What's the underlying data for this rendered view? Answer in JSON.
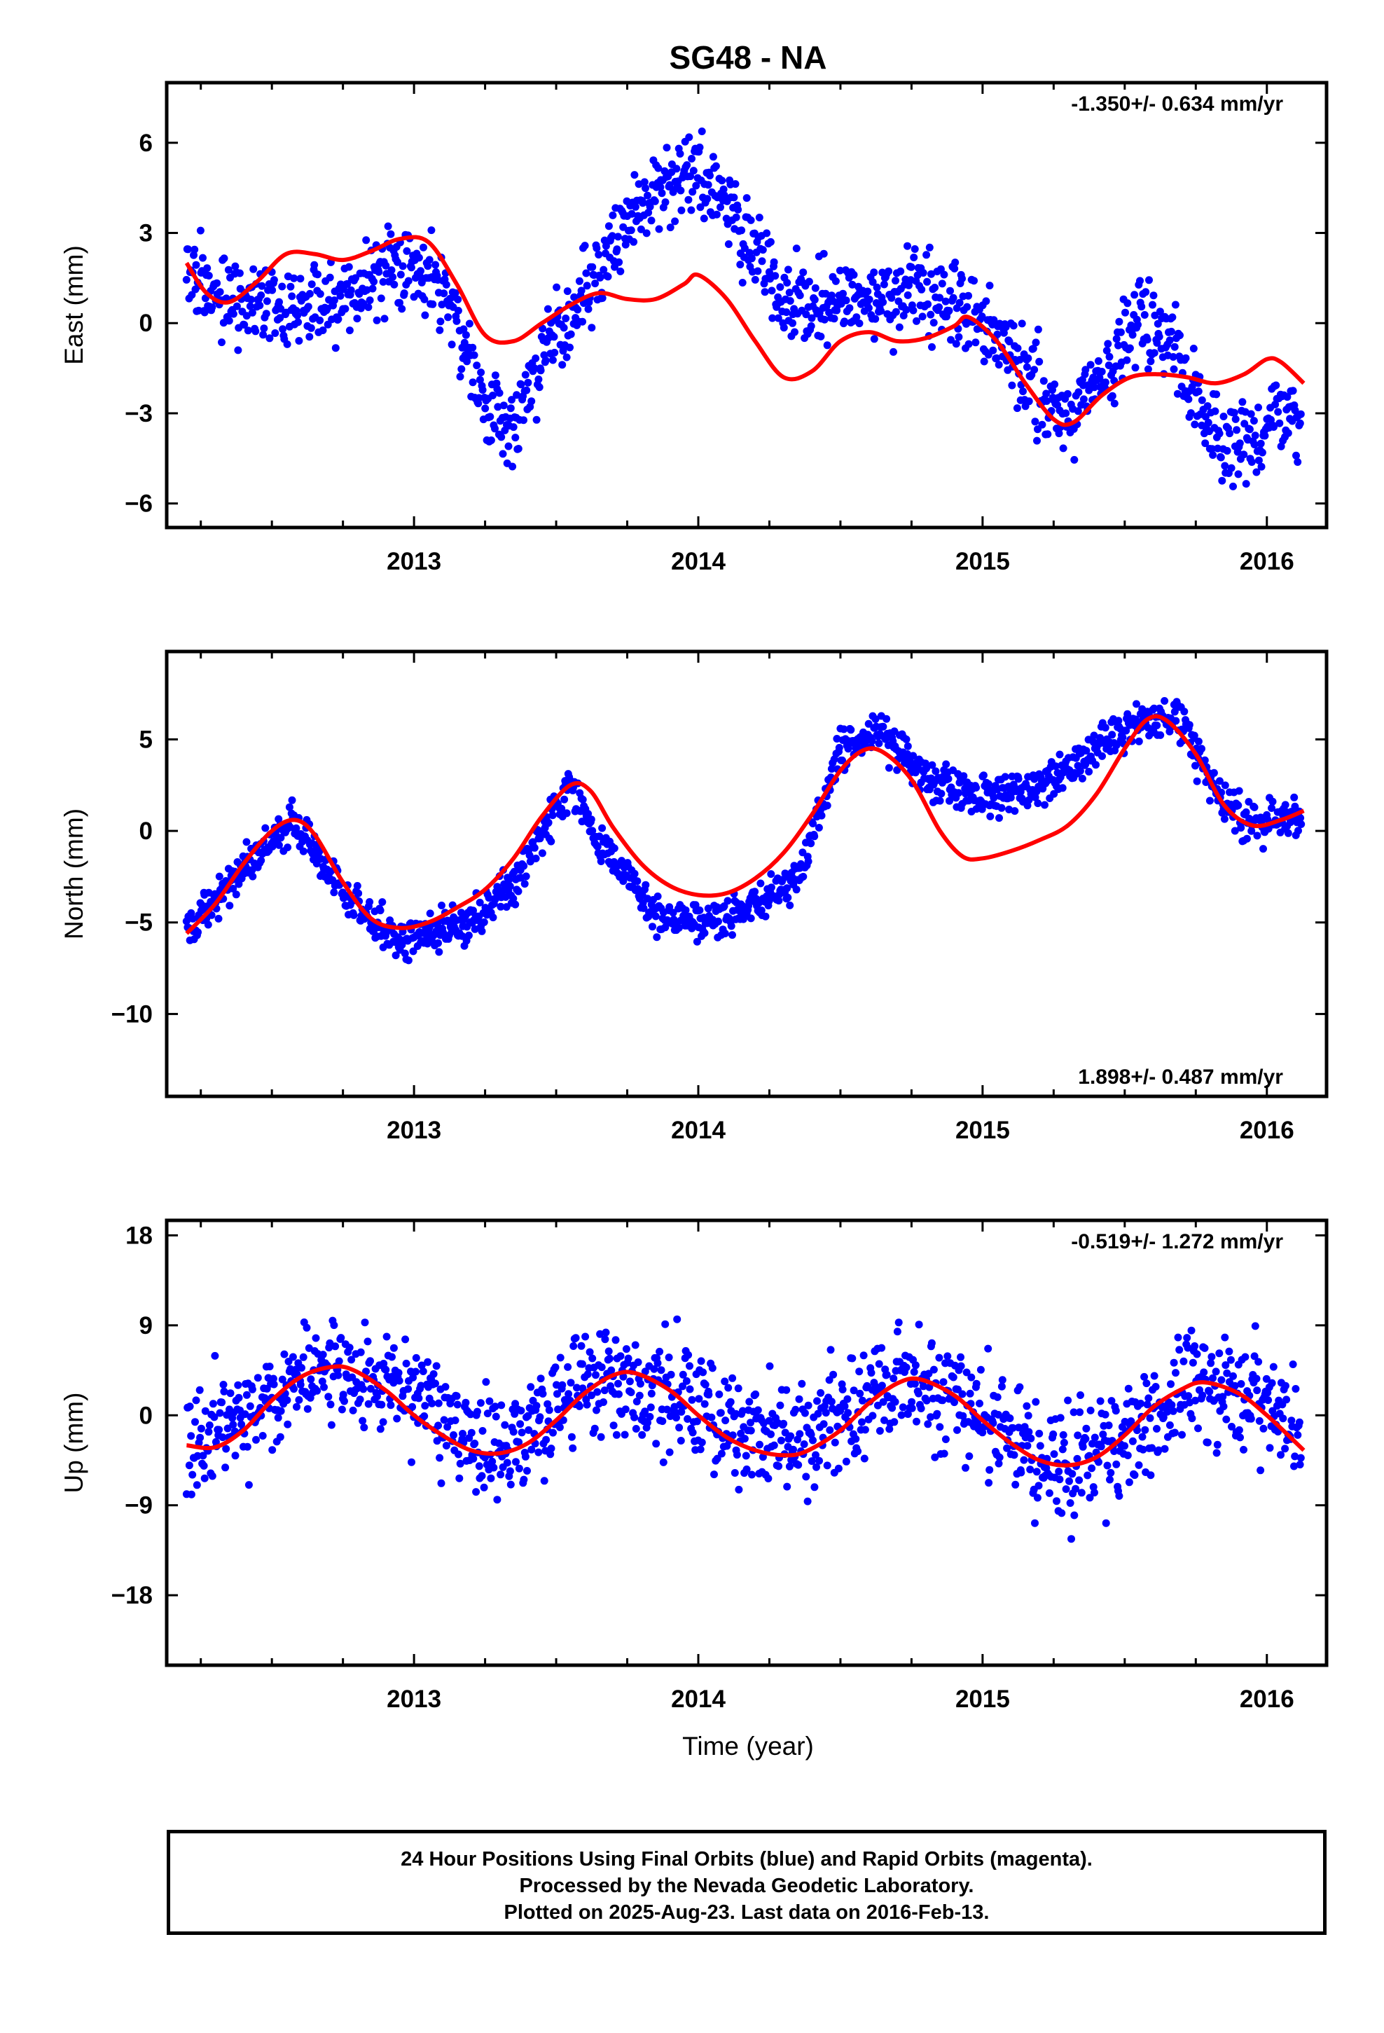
{
  "title": "SG48 - NA",
  "colors": {
    "points": "#0000ff",
    "fit": "#ff0000",
    "frame": "#000000"
  },
  "x_axis_label": "Time (year)",
  "footer": {
    "line1": "24 Hour Positions Using Final Orbits (blue) and Rapid Orbits (magenta).",
    "line2": "Processed by the Nevada Geodetic Laboratory.",
    "line3": "Plotted on 2025-Aug-23. Last data on 2016-Feb-13."
  },
  "chart_data": [
    {
      "type": "scatter",
      "component": "east",
      "ylabel": "East (mm)",
      "rate_text": "-1.350+/- 0.634 mm/yr",
      "rate_position": "top-right",
      "xlim": [
        2012.13,
        2016.21
      ],
      "ylim": [
        -6.8,
        8.0
      ],
      "x_ticks": [
        2013,
        2014,
        2015,
        2016
      ],
      "y_ticks": [
        -6,
        -3,
        0,
        3,
        6
      ],
      "y_tick_labels": [
        "−6",
        "−3",
        "0",
        "3",
        "6"
      ],
      "grid": false,
      "series_trend": [
        [
          2012.2,
          1.6
        ],
        [
          2012.4,
          0.5
        ],
        [
          2012.7,
          0.5
        ],
        [
          2012.95,
          2.0
        ],
        [
          2013.1,
          1.2
        ],
        [
          2013.25,
          -2.8
        ],
        [
          2013.35,
          -3.8
        ],
        [
          2013.45,
          -1.0
        ],
        [
          2013.6,
          1.2
        ],
        [
          2013.8,
          4.0
        ],
        [
          2013.95,
          4.8
        ],
        [
          2014.05,
          4.7
        ],
        [
          2014.15,
          3.0
        ],
        [
          2014.3,
          0.8
        ],
        [
          2014.5,
          0.5
        ],
        [
          2014.7,
          1.0
        ],
        [
          2014.9,
          0.8
        ],
        [
          2015.05,
          -0.3
        ],
        [
          2015.2,
          -2.3
        ],
        [
          2015.3,
          -3.3
        ],
        [
          2015.45,
          -1.5
        ],
        [
          2015.55,
          0.4
        ],
        [
          2015.65,
          -0.5
        ],
        [
          2015.75,
          -2.5
        ],
        [
          2015.85,
          -3.8
        ],
        [
          2015.95,
          -4.0
        ],
        [
          2016.05,
          -2.8
        ],
        [
          2016.13,
          -3.8
        ]
      ],
      "series_noise": 1.0,
      "fit_curve": {
        "x": [
          2012.2,
          2012.27,
          2012.35,
          2012.45,
          2012.55,
          2012.65,
          2012.75,
          2012.85,
          2012.95,
          2013.05,
          2013.15,
          2013.25,
          2013.35,
          2013.45,
          2013.55,
          2013.65,
          2013.75,
          2013.85,
          2013.95,
          2014.0,
          2014.1,
          2014.2,
          2014.3,
          2014.4,
          2014.5,
          2014.6,
          2014.7,
          2014.8,
          2014.9,
          2014.95,
          2015.05,
          2015.15,
          2015.25,
          2015.32,
          2015.42,
          2015.52,
          2015.62,
          2015.72,
          2015.82,
          2015.92,
          2016.0,
          2016.05,
          2016.13
        ],
        "y": [
          2.0,
          1.0,
          0.7,
          1.4,
          2.3,
          2.3,
          2.1,
          2.4,
          2.8,
          2.7,
          1.3,
          -0.4,
          -0.6,
          0.0,
          0.6,
          1.0,
          0.8,
          0.8,
          1.3,
          1.6,
          0.8,
          -0.6,
          -1.8,
          -1.6,
          -0.6,
          -0.3,
          -0.6,
          -0.5,
          -0.1,
          0.2,
          -0.6,
          -2.0,
          -3.2,
          -3.3,
          -2.4,
          -1.8,
          -1.7,
          -1.8,
          -2.0,
          -1.7,
          -1.2,
          -1.3,
          -2.0
        ]
      }
    },
    {
      "type": "scatter",
      "component": "north",
      "ylabel": "North (mm)",
      "rate_text": "1.898+/- 0.487 mm/yr",
      "rate_position": "bottom-right",
      "xlim": [
        2012.13,
        2016.21
      ],
      "ylim": [
        -14.5,
        9.8
      ],
      "x_ticks": [
        2013,
        2014,
        2015,
        2016
      ],
      "y_ticks": [
        -10,
        -5,
        0,
        5
      ],
      "y_tick_labels": [
        "−10",
        "−5",
        "0",
        "5"
      ],
      "grid": false,
      "series_trend": [
        [
          2012.2,
          -5.5
        ],
        [
          2012.4,
          -2.0
        ],
        [
          2012.58,
          0.6
        ],
        [
          2012.75,
          -3.5
        ],
        [
          2012.95,
          -6.0
        ],
        [
          2013.15,
          -5.3
        ],
        [
          2013.35,
          -2.8
        ],
        [
          2013.55,
          2.4
        ],
        [
          2013.65,
          -0.5
        ],
        [
          2013.85,
          -4.5
        ],
        [
          2014.0,
          -5.2
        ],
        [
          2014.2,
          -4.0
        ],
        [
          2014.35,
          -2.5
        ],
        [
          2014.5,
          4.5
        ],
        [
          2014.65,
          5.3
        ],
        [
          2014.8,
          2.8
        ],
        [
          2015.0,
          1.8
        ],
        [
          2015.2,
          2.5
        ],
        [
          2015.35,
          4.0
        ],
        [
          2015.55,
          6.0
        ],
        [
          2015.7,
          6.2
        ],
        [
          2015.82,
          2.0
        ],
        [
          2015.95,
          0.3
        ],
        [
          2016.13,
          0.9
        ]
      ],
      "series_noise": 0.8,
      "fit_curve": {
        "x": [
          2012.2,
          2012.3,
          2012.4,
          2012.5,
          2012.58,
          2012.65,
          2012.75,
          2012.85,
          2012.95,
          2013.05,
          2013.15,
          2013.25,
          2013.35,
          2013.45,
          2013.55,
          2013.62,
          2013.7,
          2013.8,
          2013.9,
          2014.0,
          2014.1,
          2014.2,
          2014.3,
          2014.4,
          2014.5,
          2014.58,
          2014.65,
          2014.75,
          2014.85,
          2014.93,
          2015.0,
          2015.1,
          2015.2,
          2015.3,
          2015.4,
          2015.5,
          2015.58,
          2015.65,
          2015.75,
          2015.85,
          2015.95,
          2016.05,
          2016.13
        ],
        "y": [
          -5.6,
          -4.0,
          -1.8,
          0.0,
          0.6,
          -0.2,
          -2.8,
          -4.8,
          -5.3,
          -5.0,
          -4.2,
          -3.2,
          -1.5,
          0.8,
          2.5,
          2.2,
          0.2,
          -1.8,
          -3.0,
          -3.5,
          -3.4,
          -2.6,
          -1.2,
          0.9,
          3.3,
          4.4,
          4.3,
          2.8,
          0.0,
          -1.4,
          -1.5,
          -1.1,
          -0.5,
          0.3,
          2.0,
          4.5,
          6.1,
          6.0,
          4.2,
          1.4,
          0.3,
          0.6,
          1.1
        ]
      }
    },
    {
      "type": "scatter",
      "component": "up",
      "ylabel": "Up (mm)",
      "rate_text": "-0.519+/- 1.272 mm/yr",
      "rate_position": "top-right",
      "xlim": [
        2012.13,
        2016.21
      ],
      "ylim": [
        -25.0,
        19.5
      ],
      "x_ticks": [
        2013,
        2014,
        2015,
        2016
      ],
      "y_ticks": [
        -18,
        -9,
        0,
        9,
        18
      ],
      "y_tick_labels": [
        "−18",
        "−9",
        "0",
        "9",
        "18"
      ],
      "grid": false,
      "series_trend": [
        [
          2012.2,
          -3.0
        ],
        [
          2012.4,
          -0.5
        ],
        [
          2012.55,
          3.5
        ],
        [
          2012.75,
          4.8
        ],
        [
          2012.95,
          3.0
        ],
        [
          2013.15,
          -1.5
        ],
        [
          2013.3,
          -3.5
        ],
        [
          2013.45,
          -1.0
        ],
        [
          2013.6,
          2.5
        ],
        [
          2013.75,
          4.0
        ],
        [
          2013.95,
          1.5
        ],
        [
          2014.15,
          -2.0
        ],
        [
          2014.35,
          -2.5
        ],
        [
          2014.55,
          1.0
        ],
        [
          2014.75,
          3.5
        ],
        [
          2014.95,
          1.0
        ],
        [
          2015.15,
          -3.5
        ],
        [
          2015.35,
          -5.0
        ],
        [
          2015.55,
          -1.5
        ],
        [
          2015.75,
          3.0
        ],
        [
          2015.95,
          1.5
        ],
        [
          2016.13,
          -2.5
        ]
      ],
      "series_noise": 4.0,
      "fit_curve": {
        "x": [
          2012.2,
          2012.3,
          2012.4,
          2012.5,
          2012.6,
          2012.7,
          2012.78,
          2012.9,
          2013.0,
          2013.1,
          2013.2,
          2013.3,
          2013.4,
          2013.5,
          2013.6,
          2013.7,
          2013.78,
          2013.9,
          2014.0,
          2014.1,
          2014.2,
          2014.3,
          2014.38,
          2014.5,
          2014.6,
          2014.7,
          2014.78,
          2014.9,
          2015.0,
          2015.1,
          2015.2,
          2015.3,
          2015.4,
          2015.5,
          2015.6,
          2015.7,
          2015.78,
          2015.9,
          2016.0,
          2016.13
        ],
        "y": [
          -3.0,
          -3.2,
          -1.5,
          1.5,
          3.8,
          4.8,
          4.6,
          2.5,
          0.0,
          -2.0,
          -3.5,
          -3.8,
          -2.8,
          -0.5,
          2.2,
          4.0,
          4.2,
          2.5,
          0.0,
          -2.2,
          -3.5,
          -4.0,
          -3.6,
          -1.5,
          1.2,
          3.2,
          3.6,
          2.0,
          -0.5,
          -2.8,
          -4.5,
          -5.0,
          -4.2,
          -2.0,
          0.8,
          2.6,
          3.3,
          2.2,
          0.0,
          -3.5
        ]
      }
    }
  ]
}
